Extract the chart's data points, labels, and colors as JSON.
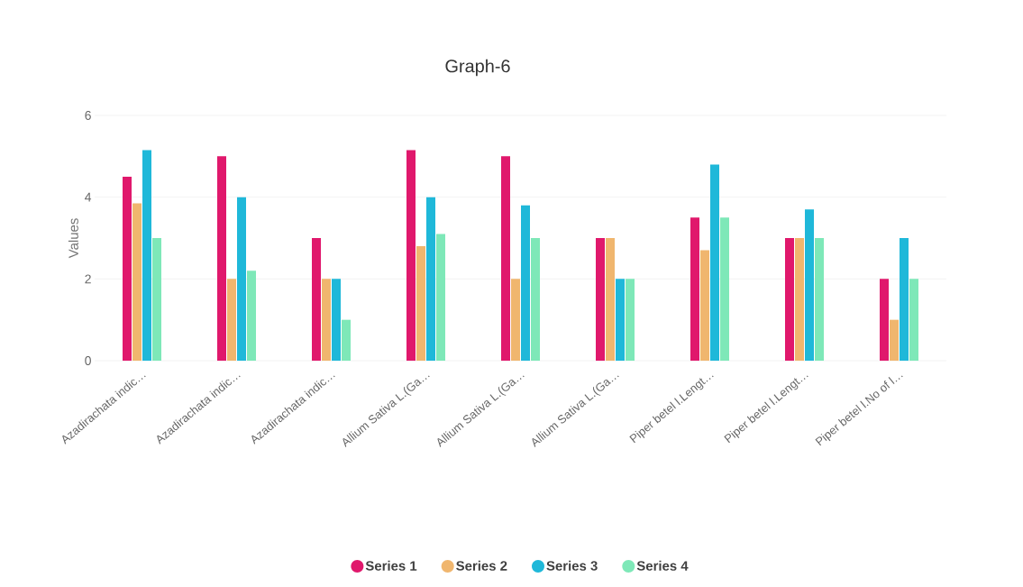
{
  "chart_data": {
    "type": "bar",
    "title": "Graph-6",
    "ylabel": "Values",
    "categories": [
      "Azadirachata indic…",
      "Azadirachata indic…",
      "Azadirachata indic…",
      "Allium Sativa L.(Ga…",
      "Allium Sativa L.(Ga…",
      "Allium Sativa L.(Ga…",
      "Piper betel l.Lengt…",
      "Piper betel l.Lengt…",
      "Piper betel l.No of l…"
    ],
    "series": [
      {
        "name": "Series 1",
        "color": "#e0186c",
        "values": [
          4.5,
          5.0,
          3.0,
          5.15,
          5.0,
          3.0,
          3.5,
          3.0,
          2.0
        ]
      },
      {
        "name": "Series 2",
        "color": "#f0b66e",
        "values": [
          3.85,
          2.0,
          2.0,
          2.8,
          2.0,
          3.0,
          2.7,
          3.0,
          1.0
        ]
      },
      {
        "name": "Series 3",
        "color": "#1fb8d9",
        "values": [
          5.15,
          4.0,
          2.0,
          4.0,
          3.8,
          2.0,
          4.8,
          3.7,
          3.0
        ]
      },
      {
        "name": "Series 4",
        "color": "#7ee8b8",
        "values": [
          3.0,
          2.2,
          1.0,
          3.1,
          3.0,
          2.0,
          3.5,
          3.0,
          2.0
        ]
      }
    ],
    "ylim": [
      0,
      6
    ],
    "yticks": [
      0,
      2,
      4,
      6
    ],
    "grid": "y",
    "legend": "bottom"
  }
}
